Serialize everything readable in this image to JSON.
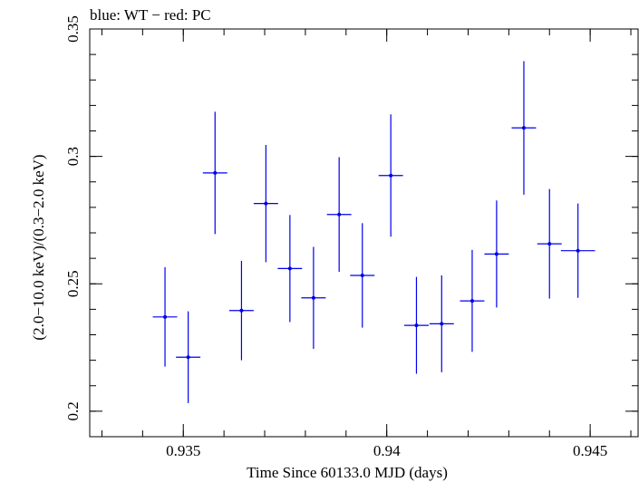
{
  "chart_data": {
    "type": "scatter",
    "title": "blue: WT − red: PC",
    "xlabel": "Time Since 60133.0 MJD (days)",
    "ylabel": "(2.0−10.0 keV)/(0.3−2.0 keV)",
    "xlim": [
      0.9327,
      0.9462
    ],
    "ylim": [
      0.19,
      0.35
    ],
    "x_ticks": [
      {
        "value": 0.935,
        "label": "0.935"
      },
      {
        "value": 0.94,
        "label": "0.94"
      },
      {
        "value": 0.945,
        "label": "0.945"
      }
    ],
    "y_ticks": [
      {
        "value": 0.2,
        "label": "0.2"
      },
      {
        "value": 0.25,
        "label": "0.25"
      },
      {
        "value": 0.3,
        "label": "0.3"
      },
      {
        "value": 0.35,
        "label": "0.35"
      }
    ],
    "x_minor_step": 0.001,
    "y_minor_step": 0.01,
    "grid": false,
    "series": [
      {
        "color": "#0000ee",
        "points": [
          {
            "x": 0.93455,
            "xerr": 0.0003,
            "y": 0.237,
            "yerr": 0.0195
          },
          {
            "x": 0.93512,
            "xerr": 0.0003,
            "y": 0.2212,
            "yerr": 0.018
          },
          {
            "x": 0.93578,
            "xerr": 0.0003,
            "y": 0.2935,
            "yerr": 0.024
          },
          {
            "x": 0.93643,
            "xerr": 0.0003,
            "y": 0.2395,
            "yerr": 0.0195
          },
          {
            "x": 0.93703,
            "xerr": 0.0003,
            "y": 0.2815,
            "yerr": 0.023
          },
          {
            "x": 0.93762,
            "xerr": 0.0003,
            "y": 0.256,
            "yerr": 0.021
          },
          {
            "x": 0.9382,
            "xerr": 0.0003,
            "y": 0.2445,
            "yerr": 0.02
          },
          {
            "x": 0.93883,
            "xerr": 0.0003,
            "y": 0.2772,
            "yerr": 0.0225
          },
          {
            "x": 0.9394,
            "xerr": 0.0003,
            "y": 0.2533,
            "yerr": 0.0205
          },
          {
            "x": 0.9401,
            "xerr": 0.0003,
            "y": 0.2925,
            "yerr": 0.024
          },
          {
            "x": 0.94073,
            "xerr": 0.0003,
            "y": 0.2337,
            "yerr": 0.019
          },
          {
            "x": 0.94135,
            "xerr": 0.0003,
            "y": 0.2343,
            "yerr": 0.019
          },
          {
            "x": 0.9421,
            "xerr": 0.0003,
            "y": 0.2433,
            "yerr": 0.02
          },
          {
            "x": 0.9427,
            "xerr": 0.0003,
            "y": 0.2617,
            "yerr": 0.021
          },
          {
            "x": 0.94337,
            "xerr": 0.0003,
            "y": 0.3112,
            "yerr": 0.0262
          },
          {
            "x": 0.944,
            "xerr": 0.0003,
            "y": 0.2657,
            "yerr": 0.0215
          },
          {
            "x": 0.9447,
            "xerr": 0.00042,
            "y": 0.263,
            "yerr": 0.0185
          }
        ]
      }
    ]
  }
}
